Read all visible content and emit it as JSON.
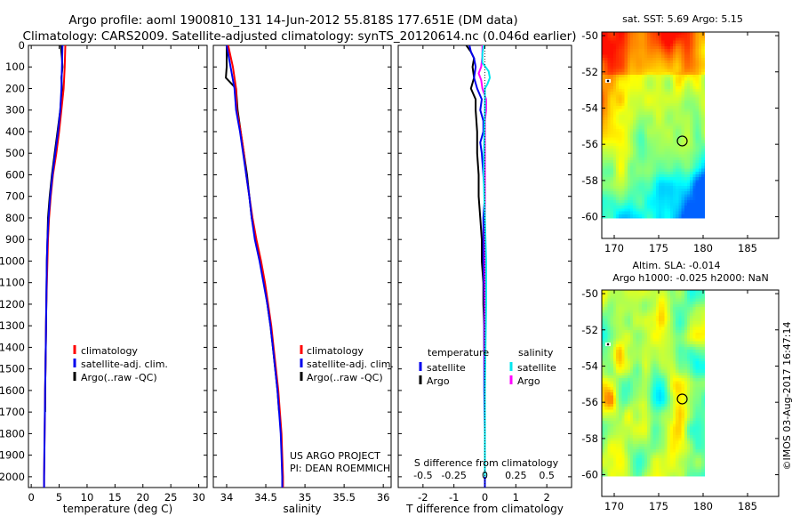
{
  "header": {
    "line1": "Argo profile: aoml 1900810_131 14-Jun-2012 55.818S 177.651E (DM data)",
    "line2": "Climatology: CARS2009. Satellite-adjusted climatology: synTS_20120614.nc (0.046d earlier)"
  },
  "copyright": "©IMOS 03-Aug-2017 16:47:14",
  "colors": {
    "climatology": "#ff0000",
    "satellite": "#0000ee",
    "argo": "#000000",
    "salinity_satellite": "#00e5ee",
    "salinity_argo": "#ff00ff"
  },
  "chart_data": [
    {
      "id": "temperature",
      "type": "line",
      "xlabel": "temperature (deg C)",
      "ylabel": "",
      "xlim": [
        -0.5,
        31.5
      ],
      "ylim": [
        2050,
        0
      ],
      "xticks": [
        0,
        5,
        10,
        15,
        20,
        25,
        30
      ],
      "yticks": [
        0,
        100,
        200,
        300,
        400,
        500,
        600,
        700,
        800,
        900,
        1000,
        1100,
        1200,
        1300,
        1400,
        1500,
        1600,
        1700,
        1800,
        1900,
        2000
      ],
      "legend": [
        "climatology",
        "satellite-adj. clim.",
        "Argo(..raw -QC)"
      ],
      "series": [
        {
          "name": "climatology",
          "color": "#ff0000",
          "depth": [
            0,
            100,
            200,
            300,
            400,
            500,
            600,
            700,
            800,
            900,
            1000,
            1200,
            1400,
            1600,
            1800,
            2000,
            2050
          ],
          "values": [
            6.1,
            6.0,
            5.8,
            5.4,
            5.0,
            4.5,
            3.9,
            3.5,
            3.2,
            3.0,
            2.9,
            2.7,
            2.6,
            2.5,
            2.4,
            2.3,
            2.3
          ]
        },
        {
          "name": "satellite-adj. clim.",
          "color": "#0000ee",
          "depth": [
            0,
            100,
            200,
            300,
            400,
            500,
            600,
            700,
            800,
            900,
            1000,
            1200,
            1400,
            1600,
            1800,
            2000,
            2050
          ],
          "values": [
            5.6,
            5.5,
            5.4,
            5.2,
            4.8,
            4.3,
            3.8,
            3.4,
            3.1,
            2.9,
            2.8,
            2.7,
            2.6,
            2.5,
            2.4,
            2.3,
            2.3
          ]
        },
        {
          "name": "Argo(..raw -QC)",
          "color": "#000000",
          "depth": [
            0,
            60,
            100,
            150,
            200,
            300,
            400,
            500,
            600,
            700,
            800,
            900,
            1000,
            1200,
            1400,
            1600,
            1700
          ],
          "values": [
            5.3,
            5.5,
            5.6,
            5.4,
            5.5,
            5.2,
            4.7,
            4.2,
            3.7,
            3.3,
            3.0,
            2.9,
            2.8,
            2.7,
            2.6,
            2.5,
            2.5
          ]
        }
      ]
    },
    {
      "id": "salinity",
      "type": "line",
      "xlabel": "salinity",
      "ylabel": "",
      "xlim": [
        33.83,
        36.1
      ],
      "ylim": [
        2050,
        0
      ],
      "xticks": [
        34,
        34.5,
        35,
        35.5,
        36
      ],
      "legend": [
        "climatology",
        "satellite-adj. clim.",
        "Argo(..raw -QC)"
      ],
      "annotation": [
        "US ARGO PROJECT",
        "PI: DEAN ROEMMICH"
      ],
      "series": [
        {
          "name": "climatology",
          "color": "#ff0000",
          "depth": [
            0,
            100,
            200,
            300,
            400,
            500,
            600,
            700,
            800,
            900,
            1000,
            1100,
            1200,
            1300,
            1400,
            1500,
            1600,
            1700,
            1800,
            1900,
            2000,
            2050
          ],
          "values": [
            34.02,
            34.08,
            34.12,
            34.13,
            34.18,
            34.22,
            34.25,
            34.29,
            34.33,
            34.38,
            34.44,
            34.49,
            34.53,
            34.57,
            34.6,
            34.63,
            34.66,
            34.68,
            34.7,
            34.71,
            34.72,
            34.72
          ]
        },
        {
          "name": "satellite-adj. clim.",
          "color": "#0000ee",
          "depth": [
            0,
            100,
            200,
            300,
            400,
            500,
            600,
            700,
            800,
            900,
            1000,
            1100,
            1200,
            1300,
            1400,
            1500,
            1600,
            1700,
            1800,
            1900,
            2000,
            2050
          ],
          "values": [
            34.0,
            34.05,
            34.1,
            34.12,
            34.17,
            34.21,
            34.25,
            34.29,
            34.32,
            34.36,
            34.42,
            34.47,
            34.52,
            34.56,
            34.59,
            34.62,
            34.65,
            34.67,
            34.69,
            34.7,
            34.71,
            34.71
          ]
        },
        {
          "name": "Argo(..raw -QC)",
          "color": "#000000",
          "depth": [
            0,
            100,
            150,
            200,
            300,
            400,
            500,
            600,
            700,
            800,
            900,
            1000,
            1100,
            1200,
            1300,
            1400,
            1500,
            1600,
            1700
          ],
          "values": [
            34.0,
            34.0,
            33.99,
            34.12,
            34.14,
            34.18,
            34.22,
            34.26,
            34.29,
            34.32,
            34.37,
            34.43,
            34.48,
            34.52,
            34.56,
            34.59,
            34.62,
            34.65,
            34.67
          ]
        }
      ]
    },
    {
      "id": "differences",
      "type": "line",
      "xlabel": "T difference from climatology",
      "xlabel_top": "S difference from climatology",
      "xlim": [
        -2.8,
        2.8
      ],
      "ylim": [
        2050,
        0
      ],
      "xticks": [
        -2,
        -1,
        0,
        1,
        2
      ],
      "xtick_labels": [
        "-2",
        "-1",
        "0",
        "1",
        "2"
      ],
      "s_ticks": [
        -0.5,
        -0.25,
        0,
        0.25,
        0.5
      ],
      "s_tick_labels": [
        "-0.5",
        "-0.25",
        "0",
        "0.25",
        "0.5"
      ],
      "s_scale": 4,
      "legend_titles": [
        "temperature",
        "salinity"
      ],
      "legend": [
        "satellite",
        "Argo",
        "satellite",
        "Argo"
      ],
      "series": [
        {
          "name": "temperature satellite",
          "color": "#0000ee",
          "depth": [
            0,
            30,
            60,
            100,
            150,
            200,
            250,
            300,
            350,
            400,
            450,
            500,
            600,
            700,
            800,
            900,
            1000,
            1200,
            1400,
            1600,
            1800,
            2000,
            2050
          ],
          "values": [
            -0.5,
            -0.45,
            -0.35,
            -0.3,
            -0.35,
            -0.25,
            -0.1,
            -0.15,
            -0.05,
            -0.05,
            -0.15,
            -0.1,
            -0.05,
            0.0,
            -0.05,
            -0.05,
            -0.05,
            -0.02,
            -0.02,
            -0.02,
            0.0,
            0.0,
            0.0
          ]
        },
        {
          "name": "temperature Argo",
          "color": "#000000",
          "depth": [
            0,
            30,
            60,
            100,
            150,
            200,
            250,
            300,
            400,
            500,
            600,
            700,
            800,
            900,
            1000,
            1100,
            1200,
            1300,
            1400,
            1500,
            1600,
            1700
          ],
          "values": [
            -0.6,
            -0.45,
            -0.35,
            -0.4,
            -0.35,
            -0.45,
            -0.3,
            -0.3,
            -0.25,
            -0.25,
            -0.2,
            -0.2,
            -0.15,
            -0.1,
            -0.1,
            -0.05,
            -0.05,
            -0.02,
            -0.02,
            0.0,
            0.0,
            0.0
          ]
        },
        {
          "name": "salinity satellite",
          "color": "#00e5ee",
          "depth": [
            0,
            40,
            80,
            120,
            150,
            180,
            200,
            250,
            300,
            400,
            600,
            800,
            1000,
            1200,
            1400,
            1600,
            1800,
            2000
          ],
          "values": [
            -0.01,
            -0.02,
            -0.02,
            0.03,
            0.04,
            0.02,
            0.0,
            0.0,
            0.0,
            -0.005,
            -0.01,
            0.0,
            0.01,
            0.01,
            0.005,
            0.0,
            0.0,
            0.0
          ]
        },
        {
          "name": "salinity Argo",
          "color": "#ff00ff",
          "depth": [
            0,
            50,
            100,
            130,
            160,
            200,
            250,
            300,
            350,
            400,
            500,
            600,
            700,
            800,
            900,
            1000,
            1100,
            1200,
            1300,
            1400,
            1500,
            1600,
            1700
          ],
          "values": [
            -0.02,
            -0.02,
            -0.03,
            -0.05,
            -0.03,
            -0.02,
            0.01,
            0.01,
            0.0,
            0.0,
            0.0,
            0.0,
            0.0,
            0.0,
            0.0,
            0.0,
            0.0,
            0.0,
            0.0,
            0.0,
            0.0,
            0.0,
            0.0
          ]
        }
      ]
    },
    {
      "id": "sst-map",
      "type": "heatmap",
      "title": "sat. SST: 5.69  Argo: 5.15",
      "xlim": [
        168.6,
        188.5
      ],
      "ylim": [
        -61.2,
        -49.8
      ],
      "xticks": [
        170,
        175,
        180,
        185
      ],
      "yticks": [
        -50,
        -52,
        -54,
        -56,
        -58,
        -60
      ],
      "ytick_labels": [
        "-50",
        "-52",
        "-54",
        "-56",
        "-58",
        "-60"
      ],
      "data_extent": {
        "lon": [
          168.6,
          180.2
        ],
        "lat": [
          -60.1,
          -49.8
        ]
      },
      "profile_location": {
        "lon": 177.651,
        "lat": -55.818
      },
      "marker_location": {
        "lon": 169.3,
        "lat": -52.5
      }
    },
    {
      "id": "sla-map",
      "type": "heatmap",
      "title": "Altim. SLA: -0.014",
      "subtitle": "Argo h1000: -0.025 h2000: NaN",
      "xlim": [
        168.6,
        188.5
      ],
      "ylim": [
        -61.2,
        -49.8
      ],
      "xticks": [
        170,
        175,
        180,
        185
      ],
      "yticks": [
        -50,
        -52,
        -54,
        -56,
        -58,
        -60
      ],
      "ytick_labels": [
        "-50",
        "-52",
        "-54",
        "-56",
        "-58",
        "-60"
      ],
      "data_extent": {
        "lon": [
          168.6,
          180.2
        ],
        "lat": [
          -60.1,
          -49.8
        ]
      },
      "profile_location": {
        "lon": 177.651,
        "lat": -55.818
      },
      "marker_location": {
        "lon": 169.3,
        "lat": -52.8
      }
    }
  ]
}
